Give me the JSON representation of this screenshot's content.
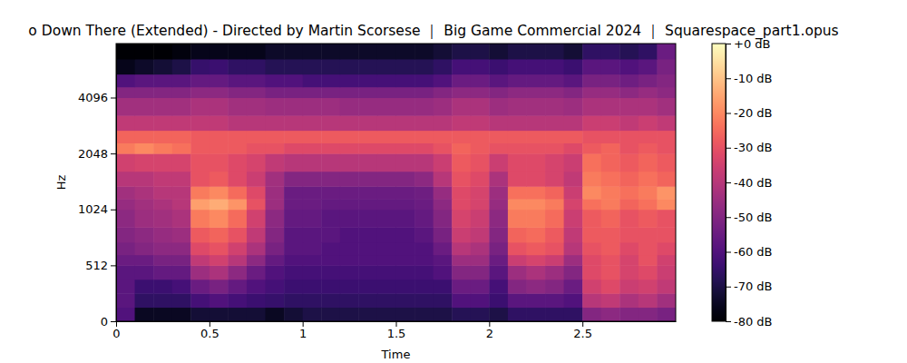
{
  "chart_data": {
    "type": "heatmap",
    "title": "o Down There (Extended) - Directed by Martin Scorsese ｜ Big Game Commercial 2024 ｜ Squarespace_part1.opus",
    "x_label": "Time",
    "y_label": "Hz",
    "xlim": [
      0,
      3
    ],
    "xticks": [
      0,
      0.5,
      1,
      1.5,
      2,
      2.5
    ],
    "ylim": [
      0,
      8000
    ],
    "yticks": [
      0,
      512,
      1024,
      2048,
      4096
    ],
    "color": "magma",
    "time_edges": [
      0,
      0.1,
      0.2,
      0.3,
      0.4,
      0.5,
      0.6,
      0.7,
      0.8,
      0.9,
      1.0,
      1.1,
      1.2,
      1.3,
      1.4,
      1.5,
      1.6,
      1.7,
      1.8,
      1.9,
      2.0,
      2.1,
      2.2,
      2.3,
      2.4,
      2.5,
      2.6,
      2.7,
      2.8,
      2.9,
      3.0
    ],
    "freq_edges": [
      0,
      128,
      256,
      384,
      512,
      609,
      724,
      861,
      1024,
      1218,
      1448,
      1722,
      2048,
      2435,
      2896,
      3444,
      4096,
      4871,
      5793,
      6889,
      8000
    ],
    "cells": [
      [
        -60,
        -75,
        -75,
        -75,
        -72,
        -72,
        -72,
        -72,
        -75,
        -72,
        -70,
        -70,
        -70,
        -70,
        -70,
        -70,
        -70,
        -70,
        -68,
        -68,
        -70,
        -66,
        -66,
        -66,
        -66,
        -50,
        -48,
        -50,
        -50,
        -52
      ],
      [
        -58,
        -66,
        -66,
        -66,
        -62,
        -60,
        -62,
        -64,
        -65,
        -66,
        -66,
        -66,
        -66,
        -66,
        -66,
        -66,
        -66,
        -66,
        -60,
        -60,
        -64,
        -58,
        -58,
        -58,
        -60,
        -40,
        -38,
        -42,
        -40,
        -44
      ],
      [
        -58,
        -64,
        -64,
        -62,
        -55,
        -52,
        -56,
        -60,
        -62,
        -64,
        -64,
        -64,
        -64,
        -64,
        -64,
        -64,
        -64,
        -64,
        -55,
        -55,
        -62,
        -50,
        -48,
        -50,
        -55,
        -35,
        -32,
        -36,
        -35,
        -38
      ],
      [
        -58,
        -58,
        -56,
        -56,
        -45,
        -42,
        -48,
        -55,
        -60,
        -62,
        -62,
        -62,
        -62,
        -62,
        -62,
        -62,
        -62,
        -60,
        -50,
        -50,
        -58,
        -45,
        -42,
        -45,
        -50,
        -32,
        -30,
        -34,
        -32,
        -36
      ],
      [
        -55,
        -55,
        -52,
        -52,
        -38,
        -35,
        -40,
        -48,
        -56,
        -60,
        -60,
        -60,
        -60,
        -60,
        -60,
        -60,
        -60,
        -58,
        -45,
        -45,
        -55,
        -36,
        -34,
        -36,
        -45,
        -32,
        -30,
        -34,
        -30,
        -35
      ],
      [
        -52,
        -50,
        -48,
        -48,
        -32,
        -30,
        -35,
        -42,
        -52,
        -58,
        -58,
        -60,
        -60,
        -60,
        -60,
        -60,
        -60,
        -55,
        -40,
        -42,
        -52,
        -30,
        -28,
        -30,
        -40,
        -30,
        -28,
        -32,
        -30,
        -32
      ],
      [
        -50,
        -48,
        -46,
        -45,
        -28,
        -26,
        -30,
        -38,
        -50,
        -58,
        -58,
        -58,
        -60,
        -60,
        -60,
        -60,
        -58,
        -52,
        -36,
        -38,
        -50,
        -26,
        -25,
        -28,
        -38,
        -28,
        -28,
        -30,
        -30,
        -30
      ],
      [
        -48,
        -45,
        -44,
        -42,
        -22,
        -20,
        -25,
        -35,
        -48,
        -56,
        -56,
        -58,
        -58,
        -58,
        -58,
        -58,
        -56,
        -50,
        -34,
        -36,
        -48,
        -22,
        -22,
        -25,
        -36,
        -28,
        -26,
        -30,
        -28,
        -30
      ],
      [
        -46,
        -44,
        -42,
        -40,
        -16,
        -14,
        -18,
        -30,
        -45,
        -55,
        -55,
        -56,
        -56,
        -56,
        -56,
        -56,
        -55,
        -48,
        -32,
        -34,
        -46,
        -20,
        -20,
        -22,
        -34,
        -24,
        -22,
        -26,
        -24,
        -20
      ],
      [
        -44,
        -42,
        -40,
        -40,
        -22,
        -20,
        -25,
        -32,
        -45,
        -55,
        -55,
        -55,
        -55,
        -55,
        -55,
        -55,
        -54,
        -46,
        -32,
        -34,
        -45,
        -24,
        -24,
        -26,
        -36,
        -20,
        -22,
        -24,
        -22,
        -18
      ],
      [
        -40,
        -40,
        -38,
        -38,
        -30,
        -28,
        -32,
        -36,
        -44,
        -50,
        -50,
        -50,
        -50,
        -50,
        -50,
        -50,
        -48,
        -40,
        -30,
        -32,
        -42,
        -32,
        -32,
        -34,
        -38,
        -22,
        -24,
        -26,
        -24,
        -26
      ],
      [
        -35,
        -34,
        -34,
        -34,
        -30,
        -30,
        -32,
        -34,
        -38,
        -40,
        -40,
        -40,
        -40,
        -40,
        -40,
        -40,
        -40,
        -36,
        -28,
        -30,
        -36,
        -32,
        -32,
        -34,
        -36,
        -24,
        -26,
        -28,
        -26,
        -28
      ],
      [
        -22,
        -20,
        -22,
        -24,
        -28,
        -28,
        -28,
        -30,
        -30,
        -32,
        -32,
        -32,
        -32,
        -32,
        -32,
        -32,
        -32,
        -30,
        -26,
        -28,
        -30,
        -30,
        -30,
        -30,
        -32,
        -28,
        -26,
        -30,
        -28,
        -30
      ],
      [
        -26,
        -26,
        -26,
        -26,
        -28,
        -28,
        -28,
        -28,
        -28,
        -28,
        -28,
        -28,
        -28,
        -28,
        -28,
        -28,
        -28,
        -28,
        -28,
        -28,
        -28,
        -28,
        -28,
        -28,
        -28,
        -30,
        -30,
        -30,
        -30,
        -30
      ],
      [
        -38,
        -38,
        -38,
        -38,
        -38,
        -38,
        -40,
        -40,
        -40,
        -40,
        -40,
        -40,
        -40,
        -40,
        -40,
        -40,
        -40,
        -40,
        -38,
        -38,
        -40,
        -40,
        -40,
        -40,
        -40,
        -36,
        -36,
        -38,
        -36,
        -38
      ],
      [
        -44,
        -44,
        -44,
        -44,
        -42,
        -42,
        -44,
        -44,
        -45,
        -45,
        -45,
        -45,
        -46,
        -46,
        -46,
        -46,
        -46,
        -45,
        -42,
        -42,
        -45,
        -44,
        -44,
        -44,
        -45,
        -42,
        -42,
        -42,
        -42,
        -44
      ],
      [
        -50,
        -50,
        -50,
        -50,
        -48,
        -48,
        -50,
        -50,
        -52,
        -52,
        -52,
        -52,
        -52,
        -52,
        -52,
        -52,
        -52,
        -50,
        -48,
        -48,
        -50,
        -48,
        -48,
        -48,
        -50,
        -46,
        -46,
        -48,
        -46,
        -48
      ],
      [
        -60,
        -58,
        -58,
        -58,
        -56,
        -56,
        -58,
        -58,
        -60,
        -60,
        -62,
        -62,
        -62,
        -62,
        -62,
        -62,
        -62,
        -60,
        -55,
        -55,
        -58,
        -56,
        -56,
        -56,
        -58,
        -52,
        -52,
        -54,
        -52,
        -50
      ],
      [
        -76,
        -74,
        -72,
        -70,
        -65,
        -64,
        -66,
        -66,
        -68,
        -68,
        -68,
        -68,
        -68,
        -68,
        -68,
        -68,
        -68,
        -66,
        -62,
        -62,
        -64,
        -62,
        -62,
        -62,
        -64,
        -58,
        -58,
        -60,
        -58,
        -52
      ],
      [
        -80,
        -80,
        -80,
        -78,
        -76,
        -76,
        -76,
        -76,
        -74,
        -74,
        -74,
        -74,
        -74,
        -74,
        -74,
        -74,
        -74,
        -72,
        -70,
        -70,
        -72,
        -70,
        -70,
        -70,
        -72,
        -66,
        -66,
        -68,
        -66,
        -55
      ]
    ],
    "colorbar": {
      "range": [
        -80,
        0
      ],
      "ticks": [
        {
          "value": 0,
          "label": "+0 dB"
        },
        {
          "value": -10,
          "label": "-10 dB"
        },
        {
          "value": -20,
          "label": "-20 dB"
        },
        {
          "value": -30,
          "label": "-30 dB"
        },
        {
          "value": -40,
          "label": "-40 dB"
        },
        {
          "value": -50,
          "label": "-50 dB"
        },
        {
          "value": -60,
          "label": "-60 dB"
        },
        {
          "value": -70,
          "label": "-70 dB"
        },
        {
          "value": -80,
          "label": "-80 dB"
        }
      ]
    }
  }
}
